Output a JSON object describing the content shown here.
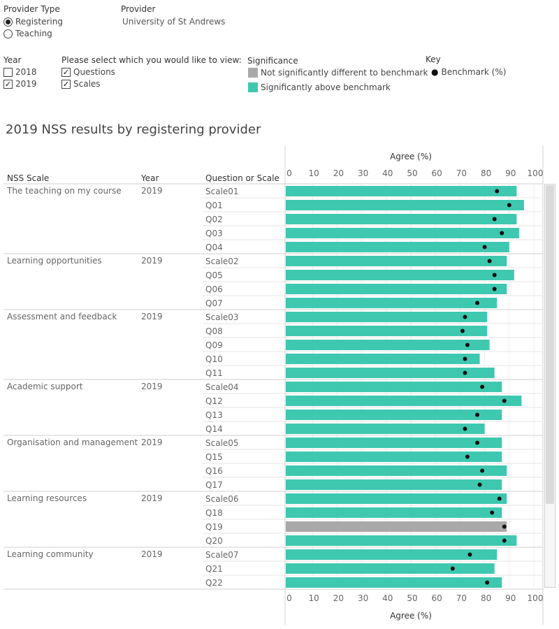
{
  "filters": {
    "provider_type": {
      "label": "Provider Type",
      "options": [
        "Registering",
        "Teaching"
      ],
      "selected": "Registering"
    },
    "provider": {
      "label": "Provider",
      "value": "University of St Andrews"
    },
    "year": {
      "label": "Year",
      "options": [
        {
          "label": "2018",
          "checked": false
        },
        {
          "label": "2019",
          "checked": true
        }
      ]
    },
    "view": {
      "label": "Please select which you would like to view:",
      "options": [
        {
          "label": "Questions",
          "checked": true
        },
        {
          "label": "Scales",
          "checked": true
        }
      ]
    },
    "significance": {
      "label": "Significance",
      "items": [
        {
          "label": "Not significantly different to benchmark",
          "color": "#a9a9a9"
        },
        {
          "label": "Significantly above benchmark",
          "color": "#3ec8b0"
        }
      ]
    },
    "key": {
      "label": "Key",
      "item": "Benchmark (%)"
    }
  },
  "title": "2019 NSS results by registering provider",
  "columns": {
    "scale": "NSS Scale",
    "year": "Year",
    "question": "Question or Scale"
  },
  "axis": {
    "label": "Agree (%)",
    "ticks": [
      0,
      10,
      20,
      30,
      40,
      50,
      60,
      70,
      80,
      90,
      100
    ],
    "xlim": [
      0,
      100
    ]
  },
  "chart_data": {
    "type": "bar",
    "orientation": "horizontal",
    "title": "2019 NSS results by registering provider",
    "xlabel": "Agree (%)",
    "xlim": [
      0,
      100
    ],
    "groups": [
      {
        "scale": "The teaching on my course",
        "year": "2019",
        "rows": [
          {
            "q": "Scale01",
            "value": 93,
            "benchmark": 85,
            "sig": "above"
          },
          {
            "q": "Q01",
            "value": 96,
            "benchmark": 90,
            "sig": "above"
          },
          {
            "q": "Q02",
            "value": 93,
            "benchmark": 84,
            "sig": "above"
          },
          {
            "q": "Q03",
            "value": 94,
            "benchmark": 87,
            "sig": "above"
          },
          {
            "q": "Q04",
            "value": 90,
            "benchmark": 80,
            "sig": "above"
          }
        ]
      },
      {
        "scale": "Learning opportunities",
        "year": "2019",
        "rows": [
          {
            "q": "Scale02",
            "value": 89,
            "benchmark": 82,
            "sig": "above"
          },
          {
            "q": "Q05",
            "value": 92,
            "benchmark": 84,
            "sig": "above"
          },
          {
            "q": "Q06",
            "value": 89,
            "benchmark": 84,
            "sig": "above"
          },
          {
            "q": "Q07",
            "value": 85,
            "benchmark": 77,
            "sig": "above"
          }
        ]
      },
      {
        "scale": "Assessment and feedback",
        "year": "2019",
        "rows": [
          {
            "q": "Scale03",
            "value": 81,
            "benchmark": 72,
            "sig": "above"
          },
          {
            "q": "Q08",
            "value": 81,
            "benchmark": 71,
            "sig": "above"
          },
          {
            "q": "Q09",
            "value": 82,
            "benchmark": 73,
            "sig": "above"
          },
          {
            "q": "Q10",
            "value": 78,
            "benchmark": 72,
            "sig": "above"
          },
          {
            "q": "Q11",
            "value": 84,
            "benchmark": 72,
            "sig": "above"
          }
        ]
      },
      {
        "scale": "Academic support",
        "year": "2019",
        "rows": [
          {
            "q": "Scale04",
            "value": 87,
            "benchmark": 79,
            "sig": "above"
          },
          {
            "q": "Q12",
            "value": 95,
            "benchmark": 88,
            "sig": "above"
          },
          {
            "q": "Q13",
            "value": 87,
            "benchmark": 77,
            "sig": "above"
          },
          {
            "q": "Q14",
            "value": 80,
            "benchmark": 72,
            "sig": "above"
          }
        ]
      },
      {
        "scale": "Organisation and management",
        "year": "2019",
        "rows": [
          {
            "q": "Scale05",
            "value": 87,
            "benchmark": 77,
            "sig": "above"
          },
          {
            "q": "Q15",
            "value": 87,
            "benchmark": 73,
            "sig": "above"
          },
          {
            "q": "Q16",
            "value": 89,
            "benchmark": 79,
            "sig": "above"
          },
          {
            "q": "Q17",
            "value": 87,
            "benchmark": 78,
            "sig": "above"
          }
        ]
      },
      {
        "scale": "Learning resources",
        "year": "2019",
        "rows": [
          {
            "q": "Scale06",
            "value": 89,
            "benchmark": 86,
            "sig": "above"
          },
          {
            "q": "Q18",
            "value": 87,
            "benchmark": 83,
            "sig": "above"
          },
          {
            "q": "Q19",
            "value": 89,
            "benchmark": 88,
            "sig": "not"
          },
          {
            "q": "Q20",
            "value": 93,
            "benchmark": 88,
            "sig": "above"
          }
        ]
      },
      {
        "scale": "Learning community",
        "year": "2019",
        "rows": [
          {
            "q": "Scale07",
            "value": 85,
            "benchmark": 74,
            "sig": "above"
          },
          {
            "q": "Q21",
            "value": 84,
            "benchmark": 67,
            "sig": "above"
          },
          {
            "q": "Q22",
            "value": 87,
            "benchmark": 81,
            "sig": "above"
          }
        ]
      }
    ]
  }
}
